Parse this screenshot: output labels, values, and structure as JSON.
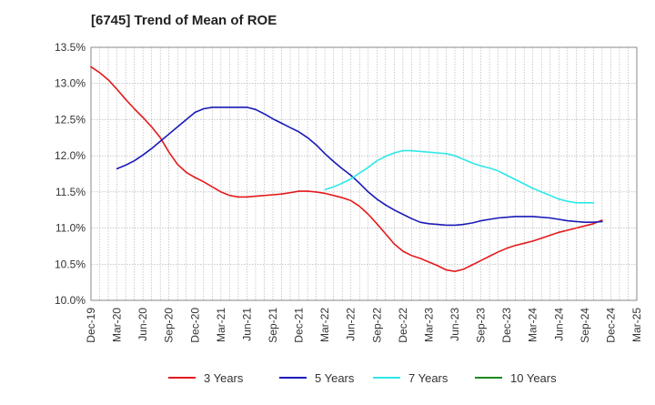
{
  "chart_data": {
    "type": "line",
    "title": "[6745]  Trend of Mean of ROE",
    "xlabel": "",
    "ylabel": "",
    "x_ticks": [
      "Dec-19",
      "Mar-20",
      "Jun-20",
      "Sep-20",
      "Dec-20",
      "Mar-21",
      "Jun-21",
      "Sep-21",
      "Dec-21",
      "Mar-22",
      "Jun-22",
      "Sep-22",
      "Dec-22",
      "Mar-23",
      "Jun-23",
      "Sep-23",
      "Dec-23",
      "Mar-24",
      "Jun-24",
      "Sep-24",
      "Dec-24",
      "Mar-25"
    ],
    "y_ticks": [
      "10.0%",
      "10.5%",
      "11.0%",
      "11.5%",
      "12.0%",
      "12.5%",
      "13.0%",
      "13.5%"
    ],
    "ylim": [
      10.0,
      13.5
    ],
    "grid": true,
    "legend_position": "bottom",
    "series": [
      {
        "name": "3 Years",
        "color": "#e31a1c",
        "start_month": "Dec-19",
        "values": [
          13.23,
          13.15,
          13.05,
          12.92,
          12.78,
          12.65,
          12.53,
          12.4,
          12.25,
          12.05,
          11.88,
          11.77,
          11.7,
          11.64,
          11.57,
          11.5,
          11.45,
          11.43,
          11.43,
          11.44,
          11.45,
          11.46,
          11.47,
          11.49,
          11.51,
          11.51,
          11.5,
          11.48,
          11.45,
          11.42,
          11.38,
          11.3,
          11.19,
          11.06,
          10.92,
          10.78,
          10.68,
          10.62,
          10.58,
          10.53,
          10.48,
          10.42,
          10.4,
          10.43,
          10.49,
          10.55,
          10.61,
          10.67,
          10.72,
          10.76,
          10.79,
          10.82,
          10.86,
          10.9,
          10.94,
          10.97,
          11.0,
          11.03,
          11.06,
          11.11
        ]
      },
      {
        "name": "5 Years",
        "color": "#1a1ab8",
        "start_month": "Dec-19",
        "values": [
          null,
          null,
          null,
          11.82,
          11.87,
          11.93,
          12.01,
          12.1,
          12.2,
          12.3,
          12.4,
          12.5,
          12.6,
          12.65,
          12.67,
          12.67,
          12.67,
          12.67,
          12.67,
          12.64,
          12.58,
          12.51,
          12.45,
          12.39,
          12.33,
          12.25,
          12.15,
          12.03,
          11.92,
          11.82,
          11.73,
          11.62,
          11.5,
          11.4,
          11.32,
          11.25,
          11.19,
          11.13,
          11.08,
          11.06,
          11.05,
          11.04,
          11.04,
          11.05,
          11.07,
          11.1,
          11.12,
          11.14,
          11.15,
          11.16,
          11.16,
          11.16,
          11.15,
          11.14,
          11.12,
          11.1,
          11.09,
          11.08,
          11.08,
          11.09
        ]
      },
      {
        "name": "7 Years",
        "color": "#2ee8e8",
        "start_month": "Dec-19",
        "values": [
          null,
          null,
          null,
          null,
          null,
          null,
          null,
          null,
          null,
          null,
          null,
          null,
          null,
          null,
          null,
          null,
          null,
          null,
          null,
          null,
          null,
          null,
          null,
          null,
          null,
          null,
          null,
          11.53,
          11.57,
          11.62,
          11.68,
          11.76,
          11.84,
          11.93,
          11.99,
          12.04,
          12.07,
          12.07,
          12.06,
          12.05,
          12.04,
          12.03,
          12.0,
          11.95,
          11.9,
          11.86,
          11.83,
          11.79,
          11.73,
          11.67,
          11.61,
          11.55,
          11.5,
          11.45,
          11.4,
          11.37,
          11.35,
          11.35,
          11.35,
          null
        ]
      },
      {
        "name": "10 Years",
        "color": "#1a8a1a",
        "start_month": "Dec-19",
        "values": []
      }
    ]
  }
}
